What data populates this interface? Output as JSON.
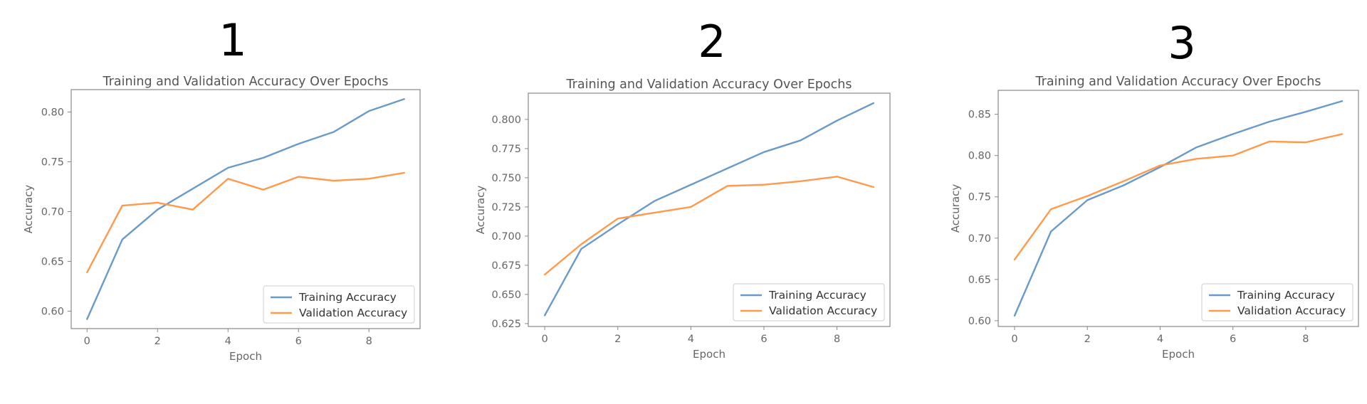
{
  "colors": {
    "training": "#6a9ac9",
    "validation": "#ff9a4d",
    "frame": "#888888",
    "tick_text": "#666666"
  },
  "chart_data": [
    {
      "panel_label": "1",
      "type": "line",
      "title": "Training and Validation Accuracy Over Epochs",
      "xlabel": "Epoch",
      "ylabel": "Accuracy",
      "x": [
        0,
        1,
        2,
        3,
        4,
        5,
        6,
        7,
        8,
        9
      ],
      "xlim": [
        -0.45,
        9.45
      ],
      "ylim": [
        0.5825,
        0.8225
      ],
      "xticks": [
        0,
        2,
        4,
        6,
        8
      ],
      "yticks": [
        0.6,
        0.65,
        0.7,
        0.75,
        0.8
      ],
      "ytick_labels": [
        "0.60",
        "0.65",
        "0.70",
        "0.75",
        "0.80"
      ],
      "legend_position": "lower-right",
      "grid": false,
      "series": [
        {
          "name": "Training Accuracy",
          "color_key": "training",
          "values": [
            0.592,
            0.672,
            0.702,
            0.723,
            0.744,
            0.754,
            0.768,
            0.78,
            0.801,
            0.813
          ]
        },
        {
          "name": "Validation Accuracy",
          "color_key": "validation",
          "values": [
            0.639,
            0.706,
            0.709,
            0.702,
            0.733,
            0.722,
            0.735,
            0.731,
            0.733,
            0.739
          ]
        }
      ]
    },
    {
      "panel_label": "2",
      "type": "line",
      "title": "Training and Validation Accuracy Over Epochs",
      "xlabel": "Epoch",
      "ylabel": "Accuracy",
      "x": [
        0,
        1,
        2,
        3,
        4,
        5,
        6,
        7,
        8,
        9
      ],
      "xlim": [
        -0.45,
        9.45
      ],
      "ylim": [
        0.6225,
        0.8225
      ],
      "xticks": [
        0,
        2,
        4,
        6,
        8
      ],
      "yticks": [
        0.625,
        0.65,
        0.675,
        0.7,
        0.725,
        0.75,
        0.775,
        0.8
      ],
      "ytick_labels": [
        "0.625",
        "0.650",
        "0.675",
        "0.700",
        "0.725",
        "0.750",
        "0.775",
        "0.800"
      ],
      "legend_position": "lower-right",
      "grid": false,
      "series": [
        {
          "name": "Training Accuracy",
          "color_key": "training",
          "values": [
            0.632,
            0.689,
            0.71,
            0.73,
            0.744,
            0.758,
            0.772,
            0.782,
            0.799,
            0.814
          ]
        },
        {
          "name": "Validation Accuracy",
          "color_key": "validation",
          "values": [
            0.667,
            0.693,
            0.715,
            0.72,
            0.725,
            0.743,
            0.744,
            0.747,
            0.751,
            0.742
          ]
        }
      ]
    },
    {
      "panel_label": "3",
      "type": "line",
      "title": "Training and Validation Accuracy Over Epochs",
      "xlabel": "Epoch",
      "ylabel": "Accuracy",
      "x": [
        0,
        1,
        2,
        3,
        4,
        5,
        6,
        7,
        8,
        9
      ],
      "xlim": [
        -0.45,
        9.45
      ],
      "ylim": [
        0.593,
        0.879
      ],
      "xticks": [
        0,
        2,
        4,
        6,
        8
      ],
      "yticks": [
        0.6,
        0.65,
        0.7,
        0.75,
        0.8,
        0.85
      ],
      "ytick_labels": [
        "0.60",
        "0.65",
        "0.70",
        "0.75",
        "0.80",
        "0.85"
      ],
      "legend_position": "lower-right",
      "grid": false,
      "series": [
        {
          "name": "Training Accuracy",
          "color_key": "training",
          "values": [
            0.606,
            0.708,
            0.746,
            0.764,
            0.786,
            0.81,
            0.826,
            0.841,
            0.853,
            0.866
          ]
        },
        {
          "name": "Validation Accuracy",
          "color_key": "validation",
          "values": [
            0.674,
            0.735,
            0.751,
            0.769,
            0.788,
            0.796,
            0.8,
            0.817,
            0.816,
            0.826
          ]
        }
      ]
    }
  ]
}
